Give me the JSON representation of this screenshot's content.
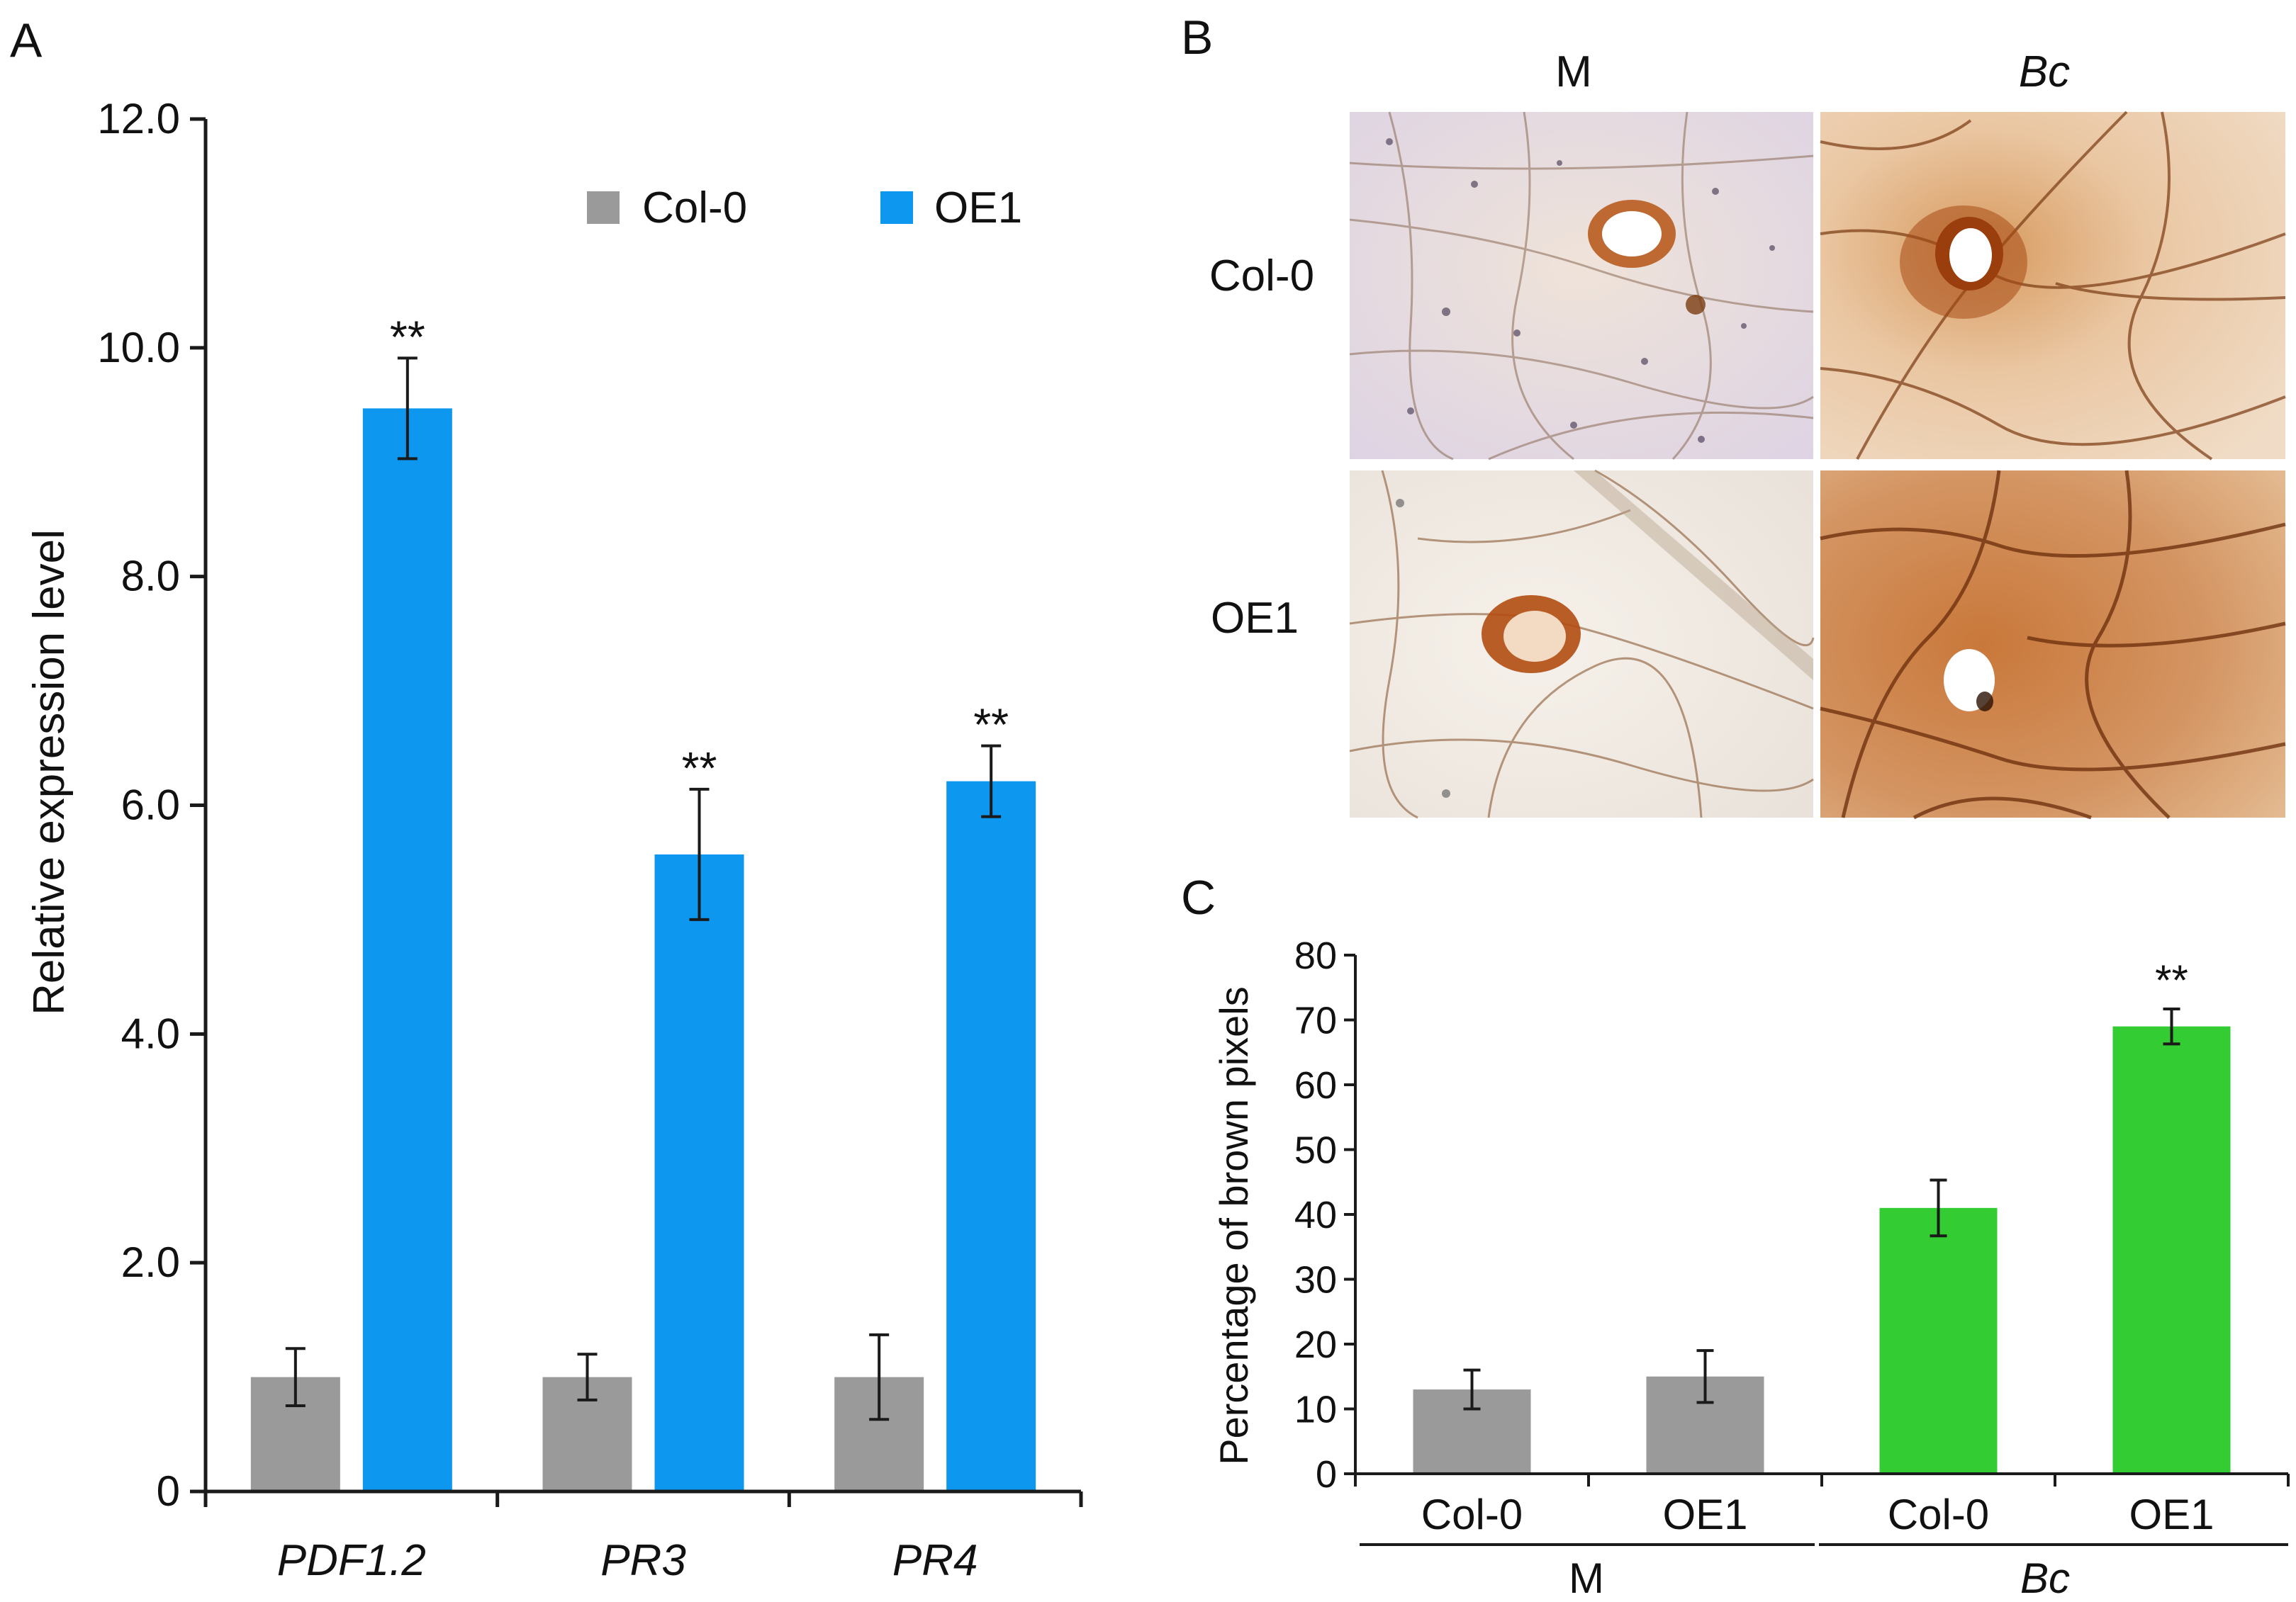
{
  "colors": {
    "col0": "#9a9a9a",
    "oe1": "#0d97ee",
    "green": "#33cc33",
    "axis": "#1a1a1a",
    "photo_gap": "#ffffff"
  },
  "panels": {
    "a_label": "A",
    "b_label": "B",
    "c_label": "C"
  },
  "panel_b": {
    "col_headers": [
      "M",
      "Bc"
    ],
    "row_headers": [
      "Col-0",
      "OE1"
    ],
    "images": [
      {
        "name": "leaf-col0-mock",
        "tone": "light"
      },
      {
        "name": "leaf-col0-bc",
        "tone": "medium"
      },
      {
        "name": "leaf-oe1-mock",
        "tone": "light"
      },
      {
        "name": "leaf-oe1-bc",
        "tone": "dark"
      }
    ]
  },
  "chart_data": [
    {
      "id": "panel-a",
      "type": "bar",
      "ylabel": "Relative expression level",
      "ylim": [
        0,
        12
      ],
      "yticks": [
        "0",
        "2.0",
        "4.0",
        "6.0",
        "8.0",
        "10.0",
        "12.0"
      ],
      "ytick_values": [
        0,
        2,
        4,
        6,
        8,
        10,
        12
      ],
      "categories": [
        "PDF1.2",
        "PR3",
        "PR4"
      ],
      "legend": [
        "Col-0",
        "OE1"
      ],
      "legend_position": "top-right",
      "series": [
        {
          "name": "Col-0",
          "values": [
            1.0,
            1.0,
            1.0
          ],
          "errors": [
            0.25,
            0.2,
            0.37
          ]
        },
        {
          "name": "OE1",
          "values": [
            9.47,
            5.57,
            6.21
          ],
          "errors": [
            0.44,
            0.57,
            0.31
          ]
        }
      ],
      "annotations": [
        {
          "text": "**",
          "category": 0,
          "series": 1
        },
        {
          "text": "**",
          "category": 1,
          "series": 1
        },
        {
          "text": "**",
          "category": 2,
          "series": 1
        }
      ]
    },
    {
      "id": "panel-c",
      "type": "bar",
      "ylabel": "Percentage of brown pixels",
      "ylim": [
        0,
        80
      ],
      "yticks": [
        "0",
        "10",
        "20",
        "30",
        "40",
        "50",
        "60",
        "70",
        "80"
      ],
      "ytick_values": [
        0,
        10,
        20,
        30,
        40,
        50,
        60,
        70,
        80
      ],
      "categories": [
        "Col-0",
        "OE1",
        "Col-0",
        "OE1"
      ],
      "groups": [
        "M",
        "Bc"
      ],
      "values": [
        13,
        15,
        41,
        69
      ],
      "errors": [
        3,
        4,
        4.3,
        2.7
      ],
      "bar_colors": [
        "col0",
        "col0",
        "green",
        "green"
      ],
      "annotations": [
        {
          "text": "**",
          "index": 3
        }
      ]
    }
  ]
}
